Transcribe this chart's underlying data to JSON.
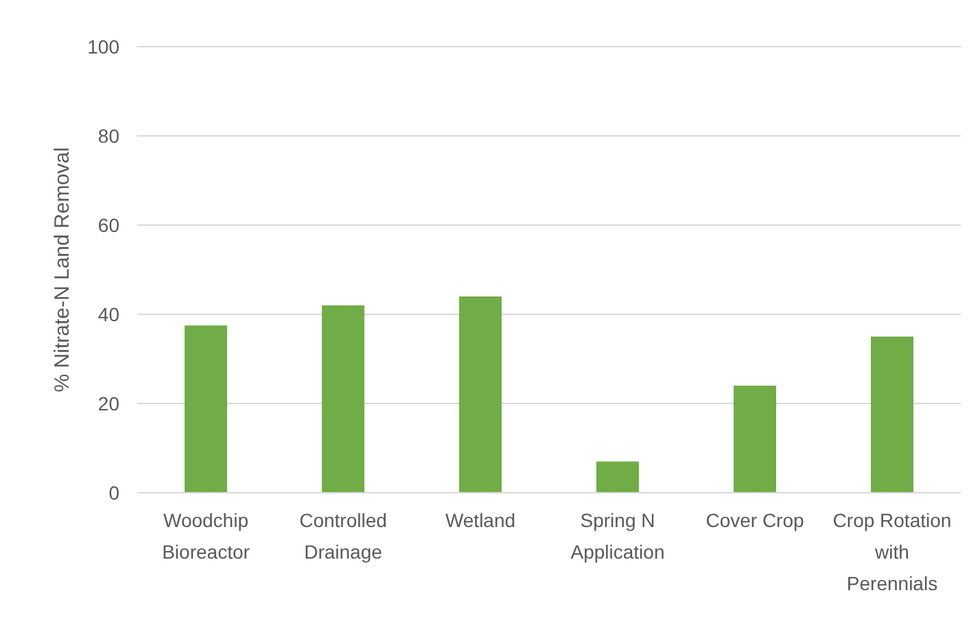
{
  "chart_data": {
    "type": "bar",
    "ylabel": "% Nitrate-N Land Removal",
    "categories": [
      "Woodchip Bioreactor",
      "Controlled Drainage",
      "Wetland",
      "Spring N Application",
      "Cover Crop",
      "Crop Rotation with Perennials"
    ],
    "values": [
      37.5,
      42,
      44,
      7,
      24,
      35
    ],
    "color": "#70ad47",
    "ylim": [
      0,
      100
    ],
    "yticks": [
      0,
      20,
      40,
      60,
      80,
      100
    ],
    "grid": "y"
  }
}
